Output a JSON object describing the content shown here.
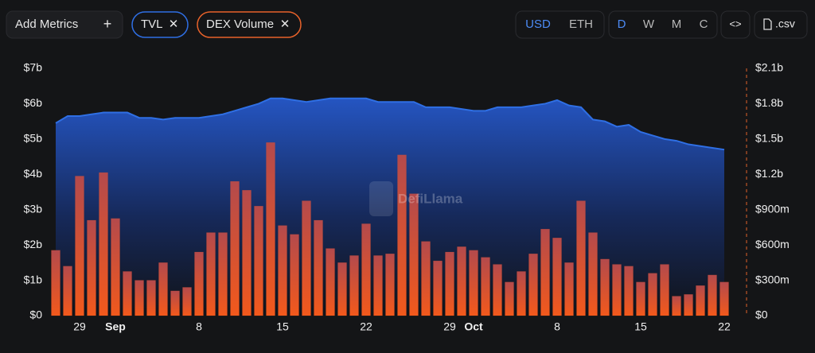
{
  "toolbar": {
    "add_metrics": "Add Metrics",
    "add_icon": "+",
    "close_icon": "✕",
    "currencies": [
      "USD",
      "ETH"
    ],
    "intervals": [
      "D",
      "W",
      "M",
      "C"
    ],
    "embed": "<>",
    "csv": ".csv"
  },
  "watermark": "DefiLlama",
  "chart_data": {
    "type": "combo",
    "categories": [
      null,
      null,
      "29",
      null,
      null,
      "Sep",
      null,
      null,
      null,
      null,
      null,
      null,
      "8",
      null,
      null,
      null,
      null,
      null,
      null,
      "15",
      null,
      null,
      null,
      null,
      null,
      null,
      "22",
      null,
      null,
      null,
      null,
      null,
      null,
      "29",
      null,
      "Oct",
      null,
      null,
      null,
      null,
      null,
      null,
      "8",
      null,
      null,
      null,
      null,
      null,
      null,
      "15",
      null,
      null,
      null,
      null,
      null,
      null,
      "22"
    ],
    "series": [
      {
        "name": "TVL",
        "type": "area",
        "axis": "y",
        "color": "#2f6fe4",
        "values": [
          5.45,
          5.65,
          5.65,
          5.7,
          5.75,
          5.75,
          5.75,
          5.6,
          5.6,
          5.55,
          5.6,
          5.6,
          5.6,
          5.65,
          5.7,
          5.8,
          5.9,
          6.0,
          6.15,
          6.15,
          6.1,
          6.05,
          6.1,
          6.15,
          6.15,
          6.15,
          6.15,
          6.05,
          6.05,
          6.05,
          6.05,
          5.9,
          5.9,
          5.9,
          5.85,
          5.8,
          5.8,
          5.9,
          5.9,
          5.9,
          5.95,
          6.0,
          6.1,
          5.95,
          5.9,
          5.55,
          5.5,
          5.35,
          5.4,
          5.2,
          5.1,
          5.0,
          4.95,
          4.85,
          4.8,
          4.75,
          4.7
        ]
      },
      {
        "name": "DEX Volume",
        "type": "bar",
        "axis": "y2",
        "color": "#ef5a1f",
        "values": [
          555,
          420,
          1185,
          810,
          1215,
          825,
          375,
          300,
          300,
          450,
          210,
          240,
          540,
          705,
          705,
          1140,
          1065,
          930,
          1470,
          765,
          690,
          975,
          810,
          570,
          450,
          510,
          780,
          510,
          525,
          1365,
          1035,
          630,
          465,
          540,
          585,
          555,
          495,
          435,
          285,
          375,
          525,
          735,
          660,
          450,
          975,
          705,
          480,
          435,
          420,
          285,
          360,
          435,
          165,
          180,
          255,
          345,
          285
        ]
      }
    ],
    "ylim": [
      0,
      7
    ],
    "yticks": [
      {
        "value": 0,
        "label": "$0"
      },
      {
        "value": 1,
        "label": "$1b"
      },
      {
        "value": 2,
        "label": "$2b"
      },
      {
        "value": 3,
        "label": "$3b"
      },
      {
        "value": 4,
        "label": "$4b"
      },
      {
        "value": 5,
        "label": "$5b"
      },
      {
        "value": 6,
        "label": "$6b"
      },
      {
        "value": 7,
        "label": "$7b"
      }
    ],
    "y2lim": [
      0,
      2100
    ],
    "y2ticks": [
      {
        "value": 0,
        "label": "$0"
      },
      {
        "value": 300,
        "label": "$300m"
      },
      {
        "value": 600,
        "label": "$600m"
      },
      {
        "value": 900,
        "label": "$900m"
      },
      {
        "value": 1200,
        "label": "$1.2b"
      },
      {
        "value": 1500,
        "label": "$1.5b"
      },
      {
        "value": 1800,
        "label": "$1.8b"
      },
      {
        "value": 2100,
        "label": "$2.1b"
      }
    ]
  }
}
